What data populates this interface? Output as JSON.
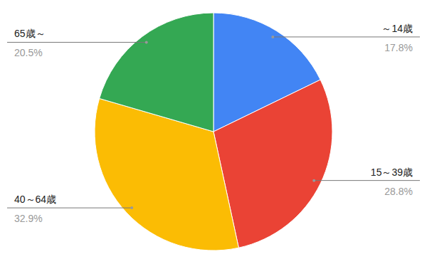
{
  "chart_data": {
    "type": "pie",
    "categories": [
      "～14歳",
      "15～39歳",
      "40～64歳",
      "65歳～"
    ],
    "values": [
      17.8,
      28.8,
      32.9,
      20.5
    ],
    "value_labels": [
      "17.8%",
      "28.8%",
      "32.9%",
      "20.5%"
    ],
    "colors": [
      "#4285f4",
      "#ea4335",
      "#fbbc04",
      "#34a853"
    ],
    "data_labels": true
  }
}
